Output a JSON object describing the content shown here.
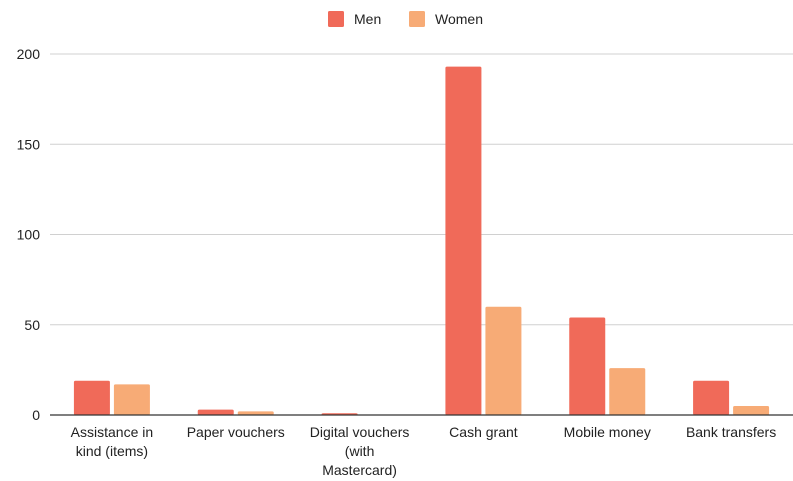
{
  "chart_data": {
    "type": "bar",
    "title": "",
    "xlabel": "",
    "ylabel": "",
    "categories": [
      [
        "Assistance in",
        "kind (items)"
      ],
      [
        "Paper vouchers"
      ],
      [
        "Digital vouchers",
        "(with",
        "Mastercard)"
      ],
      [
        "Cash grant"
      ],
      [
        "Mobile money"
      ],
      [
        "Bank transfers"
      ]
    ],
    "series": [
      {
        "name": "Men",
        "color": "#f06a59",
        "values": [
          19,
          3,
          1,
          193,
          54,
          19
        ]
      },
      {
        "name": "Women",
        "color": "#f7ab76",
        "values": [
          17,
          2,
          0,
          60,
          26,
          5
        ]
      }
    ],
    "ylim": [
      0,
      200
    ],
    "yticks": [
      0,
      50,
      100,
      150,
      200
    ],
    "grid": true,
    "legend": "top-center"
  }
}
